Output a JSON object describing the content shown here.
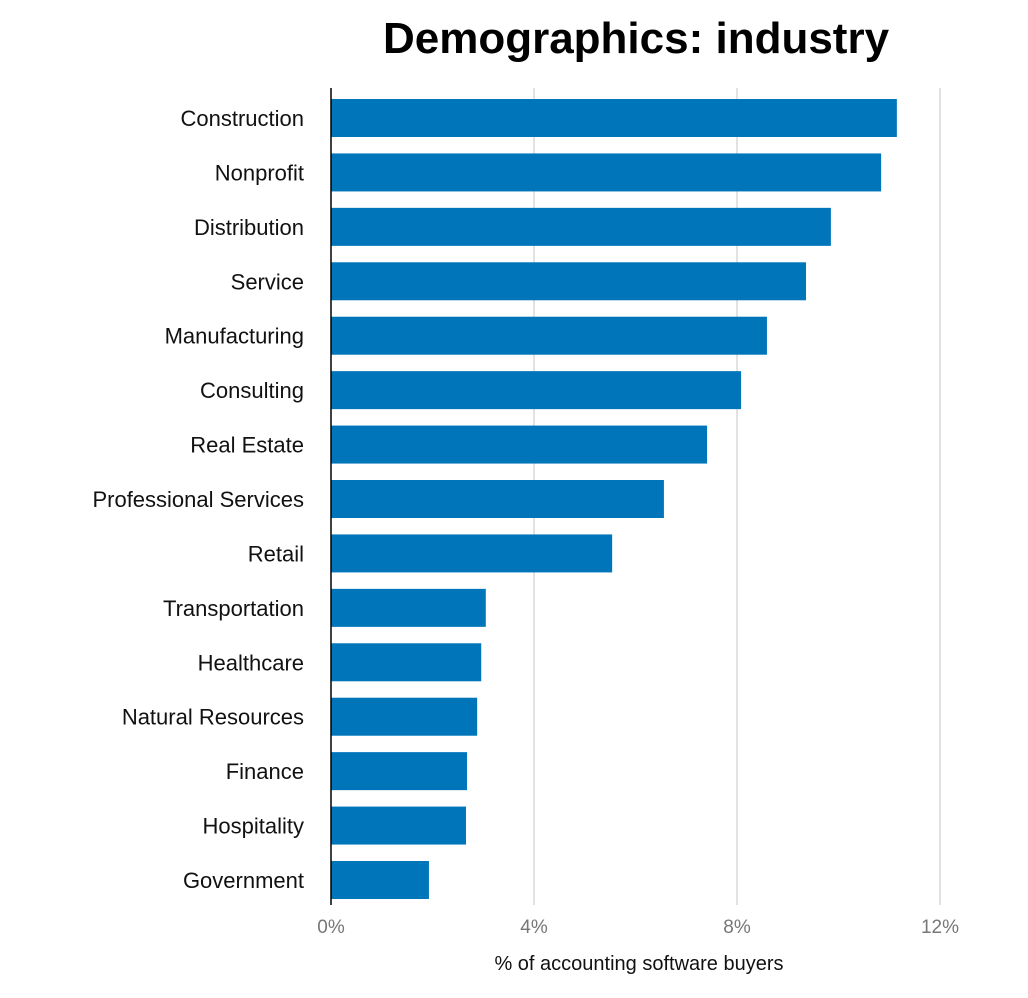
{
  "chart_data": {
    "type": "bar",
    "orientation": "horizontal",
    "title": "Demographics: industry",
    "xlabel": "% of accounting software buyers",
    "ylabel": "",
    "categories": [
      "Construction",
      "Nonprofit",
      "Distribution",
      "Service",
      "Manufacturing",
      "Consulting",
      "Real Estate",
      "Professional Services",
      "Retail",
      "Transportation",
      "Healthcare",
      "Natural Resources",
      "Finance",
      "Hospitality",
      "Government"
    ],
    "values": [
      11.15,
      10.84,
      9.85,
      9.36,
      8.59,
      8.08,
      7.41,
      6.56,
      5.54,
      3.05,
      2.96,
      2.88,
      2.68,
      2.66,
      1.93
    ],
    "xlim": [
      0,
      12
    ],
    "xticks": [
      0,
      4,
      8,
      12
    ],
    "xtick_labels": [
      "0%",
      "4%",
      "8%",
      "12%"
    ],
    "grid": true,
    "bar_color": "#0075BA"
  }
}
